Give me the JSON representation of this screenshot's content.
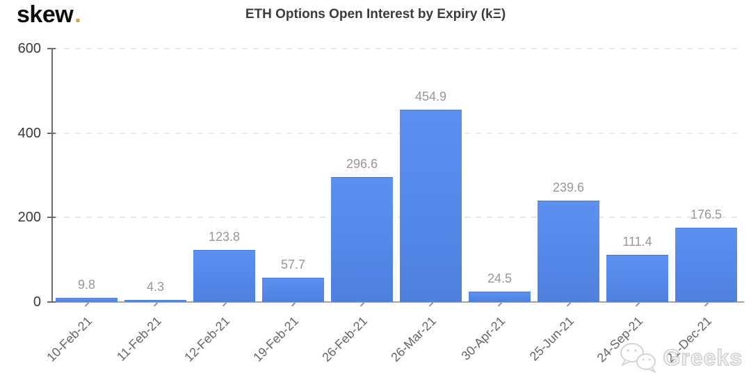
{
  "logo": {
    "text": "skew",
    "dot": "."
  },
  "chart_data": {
    "type": "bar",
    "title": "ETH Options Open Interest by Expiry (kΞ)",
    "categories": [
      "10-Feb-21",
      "11-Feb-21",
      "12-Feb-21",
      "19-Feb-21",
      "26-Feb-21",
      "26-Mar-21",
      "30-Apr-21",
      "25-Jun-21",
      "24-Sep-21",
      "21-Dec-21"
    ],
    "values": [
      9.8,
      4.3,
      123.8,
      57.7,
      296.6,
      454.9,
      24.5,
      239.6,
      111.4,
      176.5
    ],
    "xlabel": "",
    "ylabel": "",
    "yticks": [
      0,
      200,
      400,
      600
    ],
    "ylim": [
      0,
      600
    ],
    "grid": true,
    "legend_position": "none",
    "bar_color": "#5b8ded",
    "value_label_color": "#979797",
    "accent_dot_color": "#d6a53e"
  },
  "watermark": {
    "text": "Greeks",
    "icon": "wechat-icon"
  }
}
